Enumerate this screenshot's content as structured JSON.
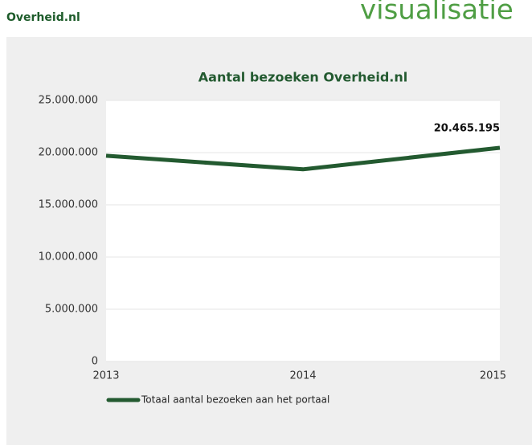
{
  "header": {
    "site": "Overheid.nl",
    "section": "visualisatie"
  },
  "chart_data": {
    "type": "line",
    "title": "Aantal bezoeken Overheid.nl",
    "categories": [
      "2013",
      "2014",
      "2015"
    ],
    "series": [
      {
        "name": "Totaal aantal bezoeken aan het portaal",
        "color": "#235a30",
        "values": [
          19700000,
          18400000,
          20465195
        ],
        "value_labels": [
          null,
          null,
          "20.465.195"
        ]
      }
    ],
    "ylim": [
      0,
      25000000
    ],
    "yticks": [
      0,
      {
        "value": 5000000,
        "label": "5.000.000"
      },
      {
        "value": 10000000,
        "label": "10.000.000"
      },
      {
        "value": 15000000,
        "label": "15.000.000"
      },
      {
        "value": 20000000,
        "label": "20.000.000"
      },
      {
        "value": 25000000,
        "label": "25.000.000"
      }
    ],
    "grid": true,
    "legend": "bottom-left"
  }
}
